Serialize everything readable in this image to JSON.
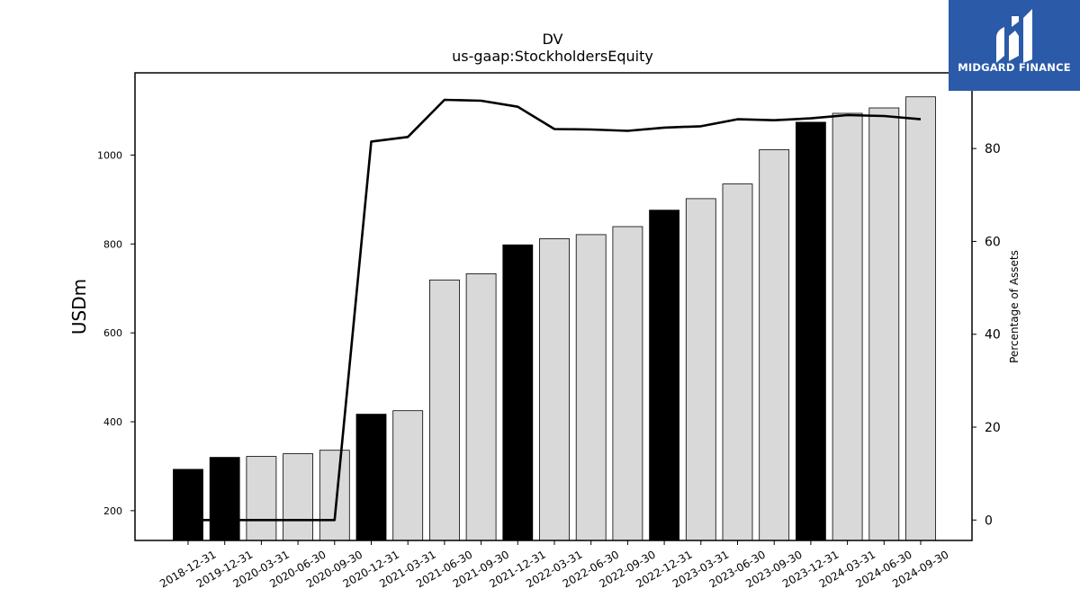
{
  "chart_data": {
    "type": "bar+line",
    "title": "DV",
    "subtitle": "us-gaap:StockholdersEquity",
    "ylabel_left": "USDm",
    "ylabel_right": "Percentage of Assets",
    "categories": [
      "2018-12-31",
      "2019-12-31",
      "2020-03-31",
      "2020-06-30",
      "2020-09-30",
      "2020-12-31",
      "2021-03-31",
      "2021-06-30",
      "2021-09-30",
      "2021-12-31",
      "2022-03-31",
      "2022-06-30",
      "2022-09-30",
      "2022-12-31",
      "2023-03-31",
      "2023-06-30",
      "2023-09-30",
      "2023-12-31",
      "2024-03-31",
      "2024-06-30",
      "2024-09-30"
    ],
    "bar_values": [
      293,
      320,
      322,
      328,
      336,
      417,
      425,
      719,
      733,
      798,
      812,
      821,
      839,
      876,
      902,
      935,
      1012,
      1074,
      1094,
      1106,
      1131
    ],
    "bar_is_annual": [
      true,
      true,
      false,
      false,
      false,
      true,
      false,
      false,
      false,
      true,
      false,
      false,
      false,
      true,
      false,
      false,
      false,
      true,
      false,
      false,
      false
    ],
    "line_values": [
      0,
      0,
      0,
      0,
      0,
      81.5,
      82.5,
      90.5,
      90.3,
      89.0,
      84.2,
      84.1,
      83.8,
      84.5,
      84.8,
      86.3,
      86.1,
      86.5,
      87.2,
      87.0,
      86.3
    ],
    "left_ylim": [
      133,
      1185
    ],
    "left_yticks": [
      200,
      400,
      600,
      800,
      1000
    ],
    "right_ylim": [
      -4.4,
      96.3
    ],
    "right_yticks": [
      0,
      20,
      40,
      60,
      80
    ],
    "grid": false,
    "colors": {
      "annual_bar": "#000000",
      "quarter_bar": "#d9d9d9",
      "bar_edge": "#000000",
      "line": "#000000"
    }
  },
  "logo": {
    "text": "MIDGARD FINANCE",
    "background": "#2b5aa8"
  }
}
